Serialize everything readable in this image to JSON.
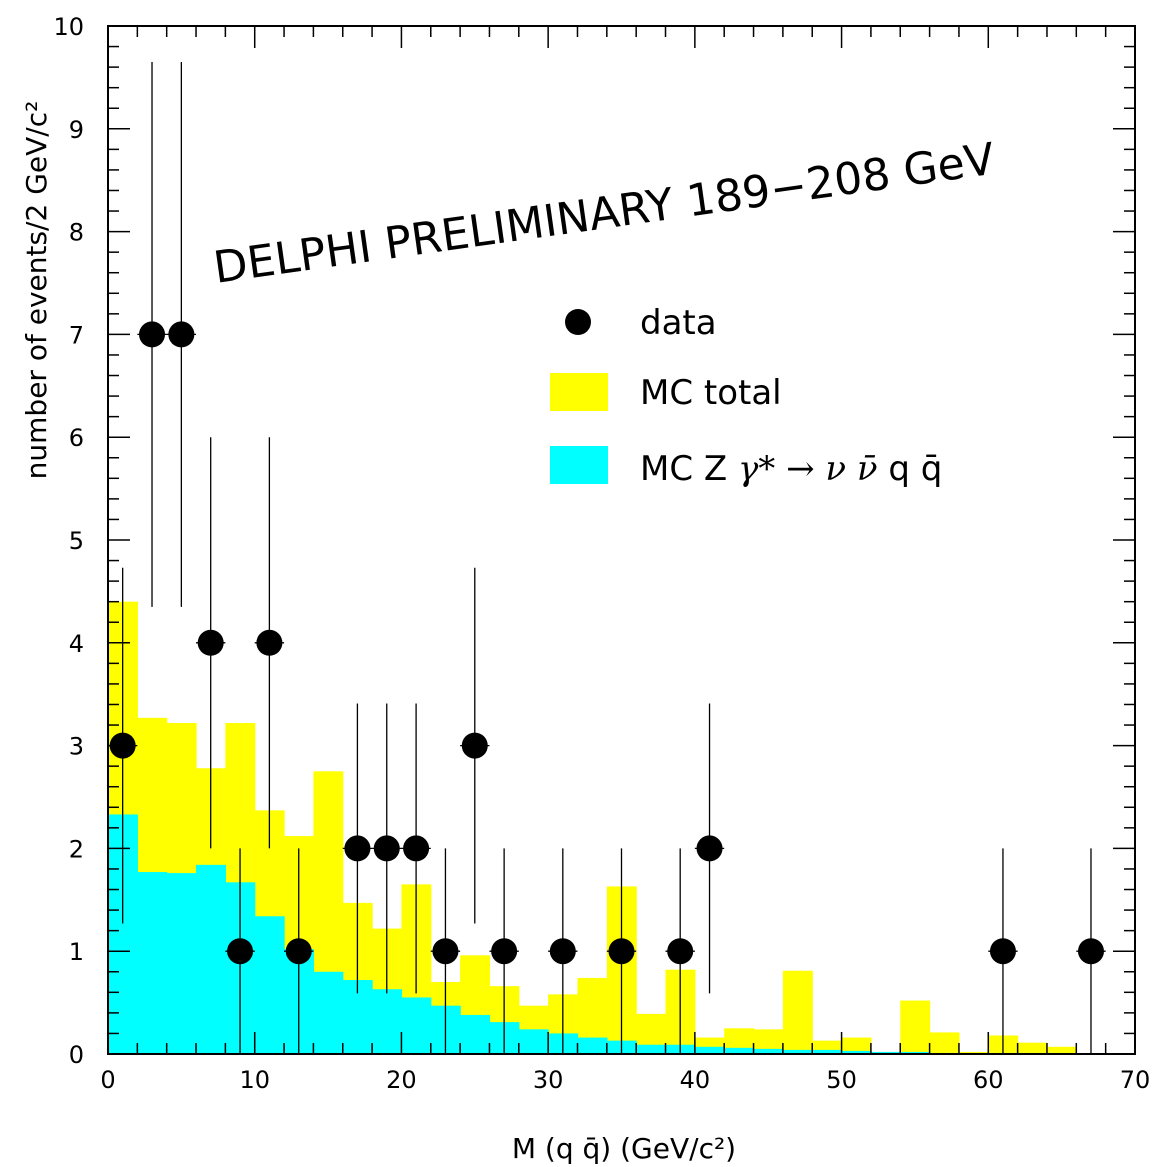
{
  "chart_data": {
    "type": "bar",
    "title": "",
    "annotation": "DELPHI PRELIMINARY 189−208 GeV",
    "xlabel": "M (q q̄)  (GeV/c²)",
    "ylabel": "number of events/2 GeV/c²",
    "xlim": [
      0,
      70
    ],
    "ylim": [
      0,
      10
    ],
    "x_ticks": [
      0,
      10,
      20,
      30,
      40,
      50,
      60,
      70
    ],
    "y_ticks": [
      0,
      1,
      2,
      3,
      4,
      5,
      6,
      7,
      8,
      9,
      10
    ],
    "bin_edges": [
      0,
      2,
      4,
      6,
      8,
      10,
      12,
      14,
      16,
      18,
      20,
      22,
      24,
      26,
      28,
      30,
      32,
      34,
      36,
      38,
      40,
      42,
      44,
      46,
      48,
      50,
      52,
      54,
      56,
      58,
      60,
      62,
      64,
      66,
      68,
      70
    ],
    "series": [
      {
        "name": "MC total",
        "kind": "histogram",
        "color": "#ffff00",
        "values": [
          4.4,
          3.27,
          3.22,
          2.78,
          3.22,
          2.37,
          2.12,
          2.75,
          1.47,
          1.22,
          1.65,
          0.7,
          0.96,
          0.66,
          0.47,
          0.58,
          0.74,
          1.63,
          0.39,
          0.82,
          0.16,
          0.25,
          0.24,
          0.81,
          0.13,
          0.16,
          0.02,
          0.52,
          0.21,
          0.02,
          0.18,
          0.11,
          0.07,
          0.0,
          0.0
        ]
      },
      {
        "name": "MC Z γ* → ν ν̄ q q̄",
        "kind": "histogram",
        "color": "#00ffff",
        "values": [
          2.33,
          1.77,
          1.76,
          1.84,
          1.67,
          1.34,
          1.02,
          0.8,
          0.72,
          0.63,
          0.55,
          0.47,
          0.38,
          0.31,
          0.24,
          0.2,
          0.16,
          0.13,
          0.09,
          0.09,
          0.07,
          0.06,
          0.05,
          0.04,
          0.04,
          0.03,
          0.02,
          0.02,
          0.01,
          0.01,
          0.01,
          0.01,
          0.01,
          0.0,
          0.0
        ]
      },
      {
        "name": "data",
        "kind": "points",
        "color": "#000000",
        "x": [
          1,
          3,
          5,
          7,
          9,
          11,
          13,
          17,
          19,
          21,
          23,
          25,
          27,
          31,
          35,
          39,
          41,
          61,
          67
        ],
        "y": [
          3,
          7,
          7,
          4,
          1,
          4,
          1,
          2,
          2,
          2,
          1,
          3,
          1,
          1,
          1,
          1,
          2,
          1,
          1
        ],
        "yerr_low": [
          1.73,
          2.65,
          2.65,
          2.0,
          1.0,
          2.0,
          1.0,
          1.41,
          1.41,
          1.41,
          1.0,
          1.73,
          1.0,
          1.0,
          1.0,
          1.0,
          1.41,
          1.0,
          1.0
        ],
        "yerr_high": [
          1.73,
          2.65,
          2.65,
          2.0,
          1.0,
          2.0,
          1.0,
          1.41,
          1.41,
          1.41,
          1.0,
          1.73,
          1.0,
          1.0,
          1.0,
          1.0,
          1.41,
          1.0,
          1.0
        ]
      }
    ],
    "legend": {
      "position": "upper-right",
      "entries": [
        {
          "label": "data",
          "marker": "circle"
        },
        {
          "label": "MC total",
          "marker": "box"
        },
        {
          "label_main": "MC Z ",
          "label_math": "γ* → ν ν̄",
          "label_tail": " q q̄",
          "marker": "box"
        }
      ]
    }
  }
}
